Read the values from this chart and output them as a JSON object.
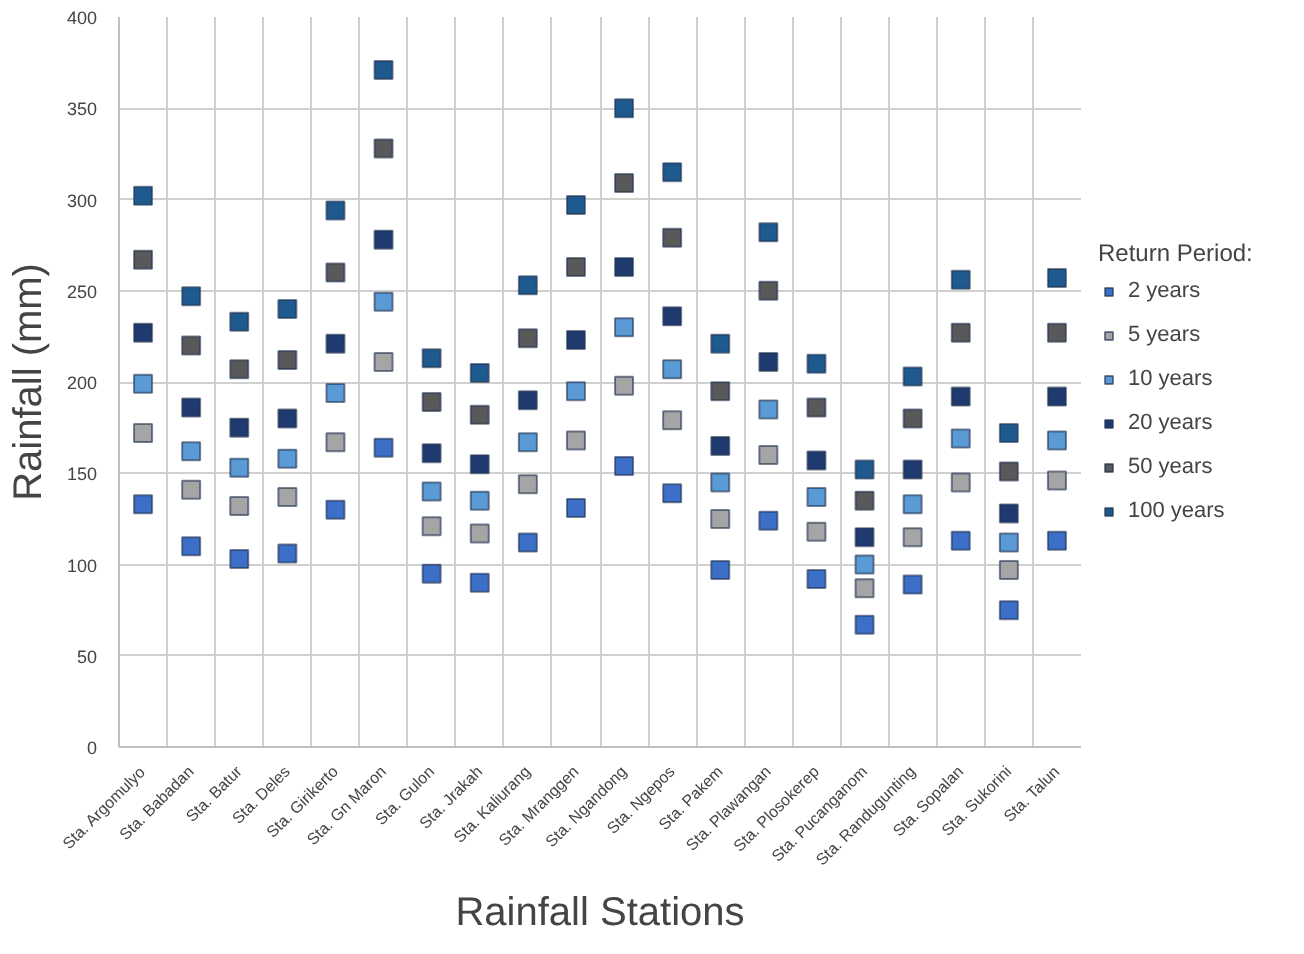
{
  "chart_data": {
    "type": "scatter",
    "xlabel": "Rainfall Stations",
    "ylabel": "Rainfall (mm)",
    "legend_title": "Return Period:",
    "categories": [
      "Sta. Argomulyo",
      "Sta. Babadan",
      "Sta. Batur",
      "Sta. Deles",
      "Sta. Girikerto",
      "Sta. Gn Maron",
      "Sta. Gulon",
      "Sta. Jrakah",
      "Sta. Kaliurang",
      "Sta. Mranggen",
      "Sta. Ngandong",
      "Sta. Ngepos",
      "Sta. Pakem",
      "Sta. Plawangan",
      "Sta. Plosokerep",
      "Sta. Pucanganom",
      "Sta. Randugunting",
      "Sta. Sopalan",
      "Sta. Sukorini",
      "Sta. Talun"
    ],
    "series": [
      {
        "name": "2 years",
        "color": "#3b6fc8",
        "values": [
          133,
          110,
          103,
          106,
          130,
          164,
          95,
          90,
          112,
          131,
          154,
          139,
          97,
          124,
          92,
          67,
          89,
          113,
          75,
          113
        ]
      },
      {
        "name": "5 years",
        "color": "#a5a5a5",
        "values": [
          172,
          141,
          132,
          137,
          167,
          211,
          121,
          117,
          144,
          168,
          198,
          179,
          125,
          160,
          118,
          87,
          115,
          145,
          97,
          146
        ]
      },
      {
        "name": "10 years",
        "color": "#5b9bd5",
        "values": [
          199,
          162,
          153,
          158,
          194,
          244,
          140,
          135,
          167,
          195,
          230,
          207,
          145,
          185,
          137,
          100,
          133,
          169,
          112,
          168
        ]
      },
      {
        "name": "20 years",
        "color": "#1f3a6e",
        "values": [
          227,
          186,
          175,
          180,
          221,
          278,
          161,
          155,
          190,
          223,
          263,
          236,
          165,
          211,
          157,
          115,
          152,
          192,
          128,
          192
        ]
      },
      {
        "name": "50 years",
        "color": "#595959",
        "values": [
          267,
          220,
          207,
          212,
          260,
          328,
          189,
          182,
          224,
          263,
          309,
          279,
          195,
          250,
          186,
          135,
          180,
          227,
          151,
          227
        ]
      },
      {
        "name": "100 years",
        "color": "#1f5a8f",
        "values": [
          302,
          247,
          233,
          240,
          294,
          371,
          213,
          205,
          253,
          297,
          350,
          315,
          221,
          282,
          210,
          152,
          203,
          256,
          172,
          257
        ]
      }
    ],
    "ylim": [
      0,
      400
    ],
    "yticks": [
      0,
      50,
      100,
      150,
      200,
      250,
      300,
      350,
      400
    ],
    "grid": true,
    "legend": "right",
    "marker": "square"
  }
}
